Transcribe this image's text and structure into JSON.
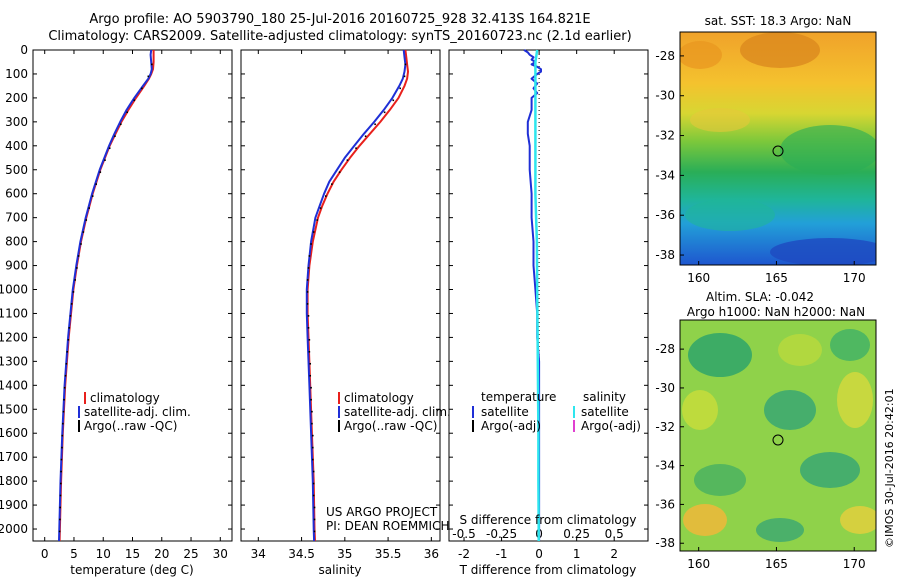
{
  "titles": {
    "line1": "Argo profile: AO 5903790_180 25-Jul-2016 20160725_928 32.413S 164.821E",
    "line2": "Climatology: CARS2009. Satellite-adjusted climatology: synTS_20160723.nc (2.1d earlier)"
  },
  "colors": {
    "clim": "#e8201c",
    "sat": "#1f2fd6",
    "argo": "#000000",
    "sat_s": "#2ee6ee",
    "argo_s": "#e040d0"
  },
  "project": {
    "line1": "US ARGO PROJECT",
    "line2": "PI: DEAN ROEMMICH"
  },
  "copyright": "©IMOS 30-Jul-2016 20:42:01",
  "chart_data": [
    {
      "type": "line",
      "title": "",
      "xlabel": "temperature (deg C)",
      "ylabel": "",
      "xlim": [
        -2,
        32
      ],
      "ylim": [
        2050,
        0
      ],
      "xticks": [
        0,
        5,
        10,
        15,
        20,
        25,
        30
      ],
      "yticks": [
        0,
        100,
        200,
        300,
        400,
        500,
        600,
        700,
        800,
        900,
        1000,
        1100,
        1200,
        1300,
        1400,
        1500,
        1600,
        1700,
        1800,
        1900,
        2000
      ],
      "legend": [
        "climatology",
        "satellite-adj. clim.",
        "Argo(..raw -QC)"
      ],
      "series": [
        {
          "name": "climatology",
          "depth": [
            0,
            20,
            50,
            80,
            100,
            120,
            150,
            200,
            250,
            300,
            350,
            400,
            500,
            600,
            700,
            800,
            900,
            1000,
            1200,
            1400,
            1600,
            1800,
            2000,
            2050
          ],
          "values": [
            18.6,
            18.6,
            18.6,
            18.5,
            18.2,
            17.8,
            17,
            15.6,
            14.3,
            13.1,
            12.1,
            11.1,
            9.5,
            8.2,
            7.1,
            6.2,
            5.5,
            4.9,
            4.1,
            3.5,
            3.1,
            2.8,
            2.6,
            2.55
          ]
        },
        {
          "name": "satellite-adj. clim.",
          "depth": [
            0,
            20,
            50,
            80,
            100,
            120,
            150,
            200,
            250,
            300,
            350,
            400,
            500,
            600,
            700,
            800,
            900,
            1000,
            1200,
            1400,
            1600,
            1800,
            2000,
            2050
          ],
          "values": [
            18.2,
            18.1,
            18.2,
            18.3,
            18.1,
            17.7,
            16.8,
            15.3,
            14,
            12.9,
            11.9,
            11,
            9.4,
            8.1,
            7,
            6.1,
            5.4,
            4.8,
            4,
            3.4,
            3,
            2.7,
            2.5,
            2.45
          ]
        },
        {
          "name": "Argo(..raw -QC)",
          "depth": [
            60,
            110,
            160,
            210,
            260,
            310,
            360,
            410,
            460,
            510,
            560,
            610,
            660,
            710,
            760,
            810,
            860,
            910,
            960,
            1010,
            1060,
            1110,
            1160,
            1210,
            1260,
            1310,
            1360,
            1410,
            1460,
            1510,
            1560,
            1610,
            1660,
            1710,
            1760,
            1810,
            1860,
            1910,
            1960,
            2010
          ],
          "values": [
            18.3,
            17.7,
            16.6,
            15.3,
            14.1,
            13,
            12,
            11.1,
            10.3,
            9.5,
            8.8,
            8.2,
            7.6,
            7.1,
            6.6,
            6.2,
            5.8,
            5.5,
            5.2,
            4.9,
            4.6,
            4.4,
            4.2,
            4.05,
            3.85,
            3.7,
            3.55,
            3.4,
            3.3,
            3.2,
            3.1,
            3,
            2.95,
            2.85,
            2.8,
            2.75,
            2.7,
            2.65,
            2.6,
            2.55
          ]
        }
      ]
    },
    {
      "type": "line",
      "title": "",
      "xlabel": "salinity",
      "ylabel": "",
      "xlim": [
        33.8,
        36.1
      ],
      "ylim": [
        2050,
        0
      ],
      "xticks": [
        34,
        34.5,
        35,
        35.5,
        36
      ],
      "xtick_labels": [
        "34",
        "34.5",
        "35",
        "35.5",
        "36"
      ],
      "legend": [
        "climatology",
        "satellite-adj. clim.",
        "Argo(..raw -QC)"
      ],
      "series": [
        {
          "name": "climatology",
          "depth": [
            0,
            30,
            60,
            90,
            120,
            150,
            200,
            250,
            300,
            350,
            400,
            450,
            500,
            550,
            600,
            650,
            700,
            800,
            900,
            1000,
            1100,
            1200,
            1400,
            1600,
            1800,
            2000,
            2050
          ],
          "values": [
            35.7,
            35.71,
            35.72,
            35.73,
            35.72,
            35.69,
            35.62,
            35.52,
            35.41,
            35.29,
            35.17,
            35.06,
            34.96,
            34.87,
            34.8,
            34.74,
            34.69,
            34.63,
            34.59,
            34.57,
            34.57,
            34.58,
            34.6,
            34.62,
            34.64,
            34.65,
            34.655
          ]
        },
        {
          "name": "satellite-adj. clim.",
          "depth": [
            0,
            30,
            60,
            90,
            120,
            150,
            200,
            250,
            300,
            350,
            400,
            450,
            500,
            550,
            600,
            650,
            700,
            800,
            900,
            1000,
            1100,
            1200,
            1400,
            1600,
            1800,
            2000,
            2050
          ],
          "values": [
            35.68,
            35.69,
            35.7,
            35.69,
            35.67,
            35.63,
            35.55,
            35.45,
            35.34,
            35.22,
            35.11,
            35,
            34.91,
            34.82,
            34.76,
            34.71,
            34.66,
            34.61,
            34.58,
            34.56,
            34.56,
            34.57,
            34.59,
            34.61,
            34.63,
            34.64,
            34.645
          ]
        },
        {
          "name": "Argo(..raw -QC)",
          "depth": [
            60,
            110,
            160,
            210,
            260,
            310,
            360,
            410,
            460,
            510,
            560,
            610,
            660,
            710,
            760,
            810,
            860,
            910,
            960,
            1010,
            1060,
            1110,
            1160,
            1210,
            1260,
            1310,
            1360,
            1410,
            1460,
            1510,
            1560,
            1610,
            1660,
            1710,
            1760,
            1810,
            1860,
            1910,
            1960,
            2010
          ],
          "values": [
            35.7,
            35.69,
            35.64,
            35.56,
            35.46,
            35.35,
            35.24,
            35.13,
            35.03,
            34.94,
            34.85,
            34.78,
            34.72,
            34.68,
            34.64,
            34.61,
            34.59,
            34.58,
            34.57,
            34.57,
            34.57,
            34.58,
            34.58,
            34.59,
            34.59,
            34.6,
            34.6,
            34.61,
            34.61,
            34.62,
            34.62,
            34.63,
            34.63,
            34.63,
            34.64,
            34.64,
            34.64,
            34.65,
            34.65,
            34.65
          ]
        }
      ]
    },
    {
      "type": "line",
      "title": "",
      "xlabel": "T difference from climatology",
      "ylabel": "",
      "xlim": [
        -2.4,
        2.9
      ],
      "ylim": [
        2050,
        0
      ],
      "xticks": [
        -2,
        -1,
        0,
        1,
        2
      ],
      "xlabel_top": "S difference from climatology",
      "sticks": [
        {
          "v": -2,
          "label": "-0.5"
        },
        {
          "v": -1,
          "label": "-0.25"
        },
        {
          "v": 0,
          "label": "0"
        },
        {
          "v": 1,
          "label": "0.25"
        },
        {
          "v": 2,
          "label": "0.5"
        }
      ],
      "legend_titles": [
        "temperature",
        "salinity"
      ],
      "legend": [
        "satellite",
        "Argo(-adj)",
        "satellite",
        "Argo(-adj)"
      ],
      "series": [
        {
          "name": "temperature satellite",
          "depth": [
            0,
            10,
            20,
            30,
            40,
            50,
            60,
            70,
            80,
            90,
            100,
            120,
            140,
            160,
            180,
            200,
            250,
            300,
            350,
            400,
            500,
            600,
            700,
            800,
            900,
            1000,
            1100,
            1200,
            1300,
            1400,
            1500,
            1600,
            1800,
            2000,
            2050
          ],
          "values": [
            -0.4,
            -0.3,
            -0.25,
            -0.15,
            -0.2,
            -0.1,
            -0.2,
            -0.05,
            0.05,
            0.05,
            -0.05,
            -0.2,
            -0.05,
            -0.15,
            -0.05,
            -0.2,
            -0.2,
            -0.3,
            -0.3,
            -0.25,
            -0.25,
            -0.2,
            -0.2,
            -0.15,
            -0.15,
            -0.1,
            -0.05,
            -0.05,
            0,
            0,
            0,
            0,
            0,
            0,
            0
          ]
        },
        {
          "name": "salinity satellite",
          "depth": [
            0,
            50,
            100,
            200,
            300,
            400,
            500,
            600,
            700,
            800,
            1000,
            1200,
            1400,
            1600,
            1800,
            2000,
            2050
          ],
          "values": [
            -0.05,
            -0.1,
            -0.1,
            -0.1,
            -0.1,
            -0.1,
            -0.1,
            -0.1,
            -0.08,
            -0.06,
            -0.05,
            -0.04,
            -0.03,
            -0.02,
            -0.02,
            -0.01,
            -0.01
          ]
        }
      ]
    }
  ],
  "maps": {
    "top": {
      "title": "sat. SST: 18.3 Argo: NaN",
      "xticks": [
        160,
        165,
        170
      ],
      "yticks": [
        -28,
        -30,
        -32,
        -34,
        -36,
        -38
      ]
    },
    "bottom": {
      "title1": "Altim. SLA: -0.042",
      "title2": "Argo h1000: NaN h2000: NaN",
      "xticks": [
        160,
        165,
        170
      ],
      "yticks": [
        -28,
        -30,
        -32,
        -34,
        -36,
        -38
      ]
    }
  }
}
